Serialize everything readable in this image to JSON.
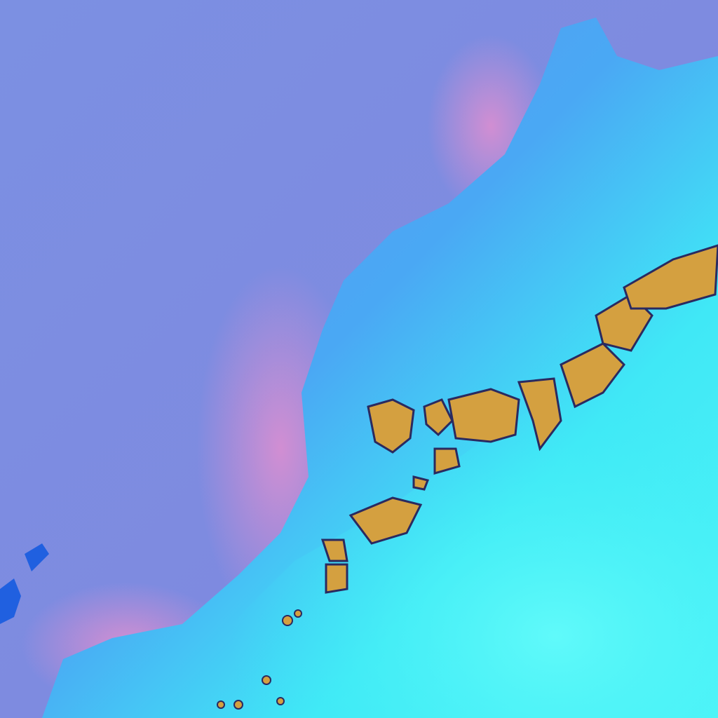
{
  "image": {
    "kind": "false-color satellite imagery",
    "colors": {
      "ocean": "#7b8fe0",
      "ocean_pink": "#d98fd0",
      "coastal_land": "#5a9ff0",
      "desert": "#3ff2f5",
      "mountain_snow": "#d4a040",
      "mountain_edge": "#2a2a60",
      "island": "#2060e0"
    }
  }
}
